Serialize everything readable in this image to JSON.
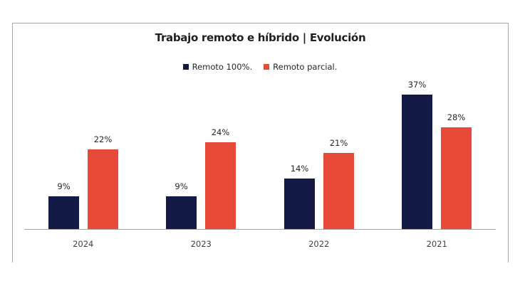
{
  "chart_data": {
    "type": "bar",
    "title": "Trabajo remoto e híbrido | Evolución",
    "xlabel": "",
    "ylabel": "",
    "categories": [
      "2024",
      "2023",
      "2022",
      "2021"
    ],
    "series": [
      {
        "name": "Remoto 100%.",
        "color": "#131a45",
        "values": [
          9,
          9,
          14,
          37
        ],
        "labels": [
          "9%",
          "9%",
          "14%",
          "37%"
        ]
      },
      {
        "name": "Remoto parcial.",
        "color": "#e84a3a",
        "values": [
          22,
          24,
          21,
          28
        ],
        "labels": [
          "22%",
          "24%",
          "21%",
          "28%"
        ]
      }
    ],
    "ylim": [
      0,
      40
    ],
    "grid": false,
    "legend_position": "top",
    "data_labels": true
  }
}
